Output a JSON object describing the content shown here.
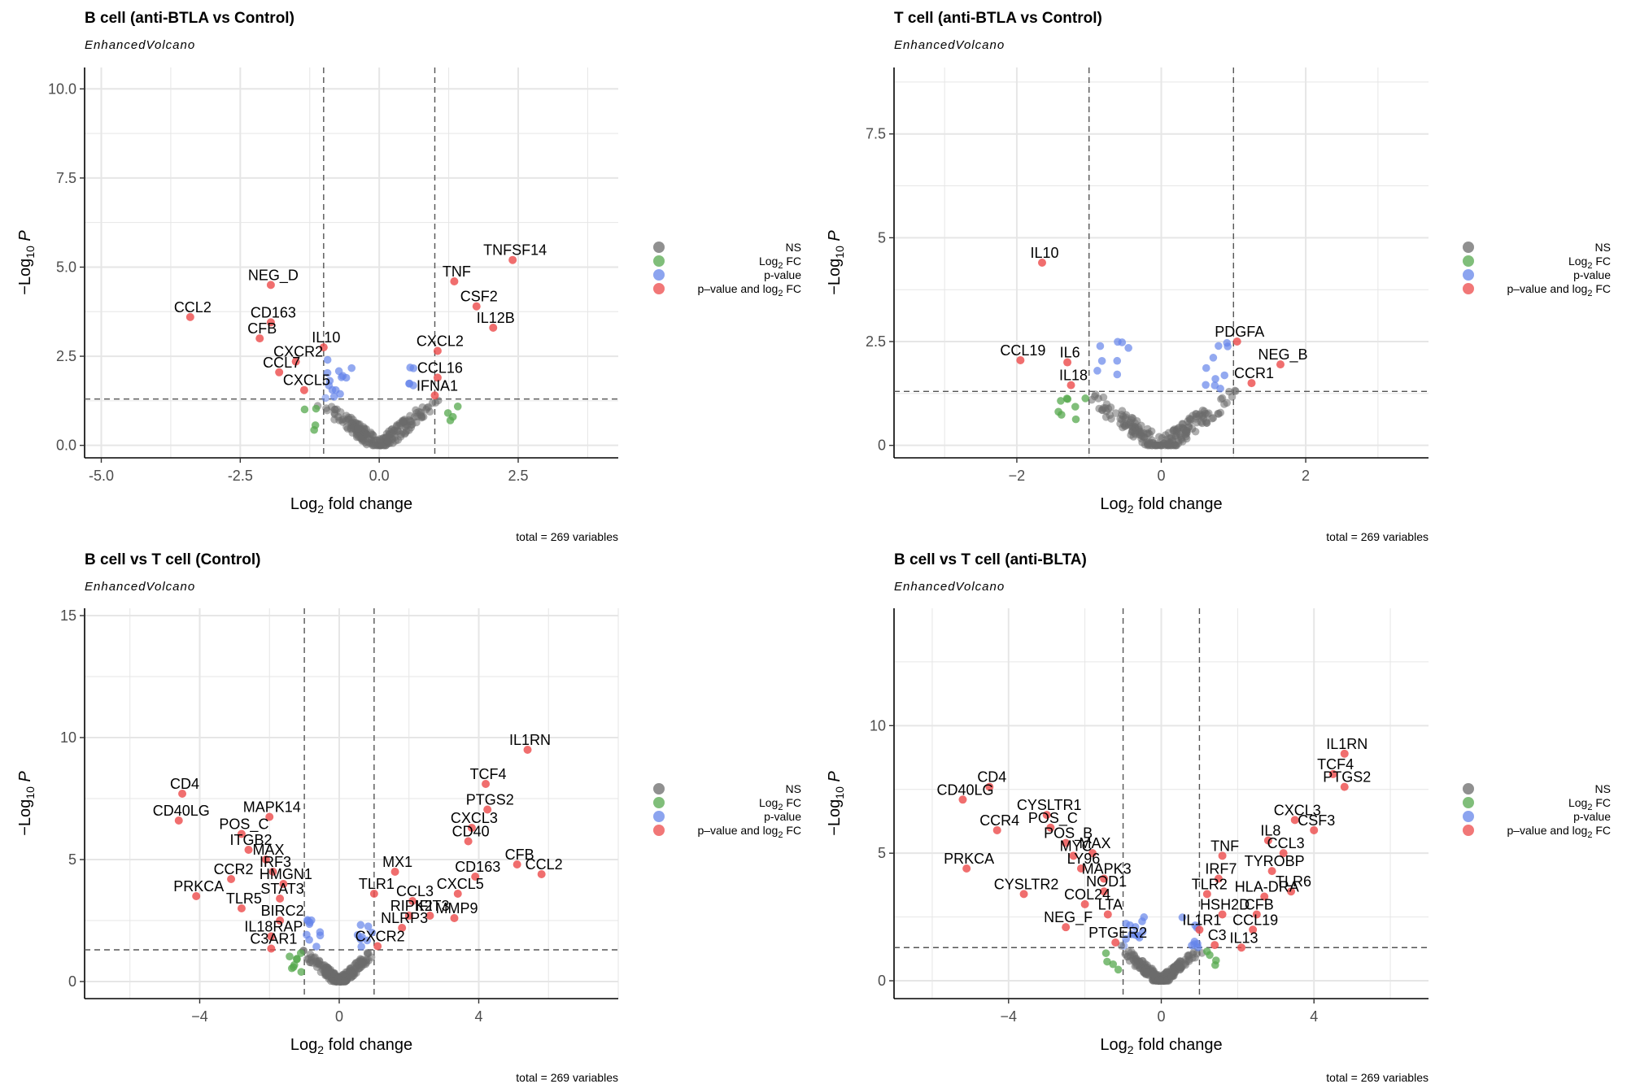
{
  "legend": {
    "items": [
      {
        "key": "ns",
        "label": "NS",
        "color": "#6b6b6b"
      },
      {
        "key": "fc",
        "label": "Log2 FC",
        "color": "#55a84d"
      },
      {
        "key": "pv",
        "label": "p-value",
        "color": "#6585e9"
      },
      {
        "key": "both",
        "label": "p–value and log2 FC",
        "color": "#ec4a4a"
      }
    ]
  },
  "chart_data": [
    {
      "type": "scatter",
      "title": "B cell (anti-BTLA vs Control)",
      "subtitle": "EnhancedVolcano",
      "xlabel": "Log2 fold change",
      "ylabel": "–Log10 P",
      "caption": "total = 269 variables",
      "xlim": [
        -5.3,
        4.3
      ],
      "ylim": [
        -0.35,
        10.6
      ],
      "xticks": [
        -5.0,
        -2.5,
        0.0,
        2.5
      ],
      "yticks": [
        0.0,
        2.5,
        5.0,
        7.5,
        10.0
      ],
      "tick_format": "fixed1",
      "fc_cutoff": 1,
      "p_cutoff_log": 1.3,
      "labeled_points": [
        {
          "label": "TNFSF14",
          "x": 2.4,
          "y": 5.2
        },
        {
          "label": "TNF",
          "x": 1.35,
          "y": 4.6
        },
        {
          "label": "NEG_D",
          "x": -1.95,
          "y": 4.5
        },
        {
          "label": "CSF2",
          "x": 1.75,
          "y": 3.9
        },
        {
          "label": "CCL2",
          "x": -3.4,
          "y": 3.6
        },
        {
          "label": "CD163",
          "x": -1.95,
          "y": 3.45
        },
        {
          "label": "IL12B",
          "x": 2.05,
          "y": 3.3
        },
        {
          "label": "CFB",
          "x": -2.15,
          "y": 3.0
        },
        {
          "label": "IL10",
          "x": -1.0,
          "y": 2.75
        },
        {
          "label": "CXCL2",
          "x": 1.05,
          "y": 2.65
        },
        {
          "label": "CXCR2",
          "x": -1.5,
          "y": 2.35
        },
        {
          "label": "CCL7",
          "x": -1.8,
          "y": 2.05
        },
        {
          "label": "CCL16",
          "x": 1.05,
          "y": 1.9
        },
        {
          "label": "CXCL5",
          "x": -1.35,
          "y": 1.55
        },
        {
          "label": "IFNA1",
          "x": 1.0,
          "y": 1.4
        }
      ]
    },
    {
      "type": "scatter",
      "title": "T cell (anti-BTLA vs Control)",
      "subtitle": "EnhancedVolcano",
      "xlabel": "Log2 fold change",
      "ylabel": "–Log10 P",
      "caption": "total = 269 variables",
      "xlim": [
        -3.7,
        3.7
      ],
      "ylim": [
        -0.3,
        9.1
      ],
      "xticks": [
        -2,
        0,
        2
      ],
      "yticks": [
        0.0,
        2.5,
        5.0,
        7.5
      ],
      "tick_format": "auto",
      "fc_cutoff": 1,
      "p_cutoff_log": 1.3,
      "labeled_points": [
        {
          "label": "IL10",
          "x": -1.65,
          "y": 4.4
        },
        {
          "label": "PDGFA",
          "x": 1.05,
          "y": 2.5
        },
        {
          "label": "CCL19",
          "x": -1.95,
          "y": 2.05
        },
        {
          "label": "IL6",
          "x": -1.3,
          "y": 2.0
        },
        {
          "label": "NEG_B",
          "x": 1.65,
          "y": 1.95
        },
        {
          "label": "IL18",
          "x": -1.25,
          "y": 1.45
        },
        {
          "label": "CCR1",
          "x": 1.25,
          "y": 1.5
        }
      ]
    },
    {
      "type": "scatter",
      "title": "B cell vs T cell (Control)",
      "subtitle": "EnhancedVolcano",
      "xlabel": "Log2 fold change",
      "ylabel": "–Log10 P",
      "caption": "total = 269 variables",
      "xlim": [
        -7.3,
        8.0
      ],
      "ylim": [
        -0.7,
        15.3
      ],
      "xticks": [
        -4,
        0,
        4
      ],
      "yticks": [
        0,
        5,
        10,
        15
      ],
      "tick_format": "auto",
      "fc_cutoff": 1,
      "p_cutoff_log": 1.3,
      "labeled_points": [
        {
          "label": "IL1RN",
          "x": 5.4,
          "y": 9.5
        },
        {
          "label": "TCF4",
          "x": 4.2,
          "y": 8.1
        },
        {
          "label": "CD4",
          "x": -4.5,
          "y": 7.7
        },
        {
          "label": "PTGS2",
          "x": 4.25,
          "y": 7.05
        },
        {
          "label": "CD40LG",
          "x": -4.6,
          "y": 6.6
        },
        {
          "label": "MAPK14",
          "x": -2.0,
          "y": 6.75
        },
        {
          "label": "CXCL3",
          "x": 3.8,
          "y": 6.3
        },
        {
          "label": "POS_C",
          "x": -2.8,
          "y": 6.05
        },
        {
          "label": "ITGB2",
          "x": -2.6,
          "y": 5.4
        },
        {
          "label": "CD40",
          "x": 3.7,
          "y": 5.75
        },
        {
          "label": "MAX",
          "x": -2.1,
          "y": 5.0
        },
        {
          "label": "CFB",
          "x": 5.1,
          "y": 4.8
        },
        {
          "label": "MX1",
          "x": 1.6,
          "y": 4.5
        },
        {
          "label": "CD163",
          "x": 3.9,
          "y": 4.3
        },
        {
          "label": "CCL2",
          "x": 5.8,
          "y": 4.4
        },
        {
          "label": "IRF3",
          "x": -1.9,
          "y": 4.5
        },
        {
          "label": "CCR2",
          "x": -3.1,
          "y": 4.2
        },
        {
          "label": "HMGN1",
          "x": -1.6,
          "y": 4.0
        },
        {
          "label": "TLR1",
          "x": 1.0,
          "y": 3.6
        },
        {
          "label": "STAT3",
          "x": -1.7,
          "y": 3.4
        },
        {
          "label": "PRKCA",
          "x": -4.1,
          "y": 3.5
        },
        {
          "label": "CXCL5",
          "x": 3.4,
          "y": 3.6
        },
        {
          "label": "CCL3",
          "x": 2.1,
          "y": 3.3
        },
        {
          "label": "MMP9",
          "x": 3.3,
          "y": 2.6
        },
        {
          "label": "TLR5",
          "x": -2.8,
          "y": 3.0
        },
        {
          "label": "RIPK2",
          "x": 2.0,
          "y": 2.7
        },
        {
          "label": "IFIT3",
          "x": 2.6,
          "y": 2.7
        },
        {
          "label": "BIRC2",
          "x": -1.7,
          "y": 2.5
        },
        {
          "label": "NLRP3",
          "x": 1.8,
          "y": 2.2
        },
        {
          "label": "IL18RAP",
          "x": -1.95,
          "y": 1.85
        },
        {
          "label": "CXCR2",
          "x": 1.1,
          "y": 1.45
        },
        {
          "label": "C3AR1",
          "x": -1.95,
          "y": 1.35
        }
      ]
    },
    {
      "type": "scatter",
      "title": "B cell vs T cell (anti-BLTA)",
      "subtitle": "EnhancedVolcano",
      "xlabel": "Log2 fold change",
      "ylabel": "–Log10 P",
      "caption": "total = 269 variables",
      "xlim": [
        -7.0,
        7.0
      ],
      "ylim": [
        -0.7,
        14.6
      ],
      "xticks": [
        -4,
        0,
        4
      ],
      "yticks": [
        0,
        5,
        10
      ],
      "tick_format": "auto",
      "fc_cutoff": 1,
      "p_cutoff_log": 1.3,
      "labeled_points": [
        {
          "label": "IL1RN",
          "x": 4.8,
          "y": 8.9
        },
        {
          "label": "TCF4",
          "x": 4.5,
          "y": 8.1
        },
        {
          "label": "PTGS2",
          "x": 4.8,
          "y": 7.6
        },
        {
          "label": "CD4",
          "x": -4.5,
          "y": 7.6
        },
        {
          "label": "CD40LG",
          "x": -5.2,
          "y": 7.1
        },
        {
          "label": "CYSLTR1",
          "x": -3.0,
          "y": 6.5
        },
        {
          "label": "CXCL3",
          "x": 3.5,
          "y": 6.3
        },
        {
          "label": "POS_C",
          "x": -2.9,
          "y": 6.0
        },
        {
          "label": "CSF3",
          "x": 4.0,
          "y": 5.9
        },
        {
          "label": "CCR4",
          "x": -4.3,
          "y": 5.9
        },
        {
          "label": "POS_B",
          "x": -2.5,
          "y": 5.4
        },
        {
          "label": "IL8",
          "x": 2.8,
          "y": 5.5
        },
        {
          "label": "MAX",
          "x": -1.8,
          "y": 5.0
        },
        {
          "label": "MYC",
          "x": -2.3,
          "y": 4.9
        },
        {
          "label": "CCL3",
          "x": 3.2,
          "y": 5.0
        },
        {
          "label": "TNF",
          "x": 1.6,
          "y": 4.9
        },
        {
          "label": "LY96",
          "x": -2.1,
          "y": 4.4
        },
        {
          "label": "TYROBP",
          "x": 2.9,
          "y": 4.3
        },
        {
          "label": "PRKCA",
          "x": -5.1,
          "y": 4.4
        },
        {
          "label": "IRF7",
          "x": 1.5,
          "y": 4.0
        },
        {
          "label": "MAPK3",
          "x": -1.5,
          "y": 4.0
        },
        {
          "label": "TLR6",
          "x": 3.4,
          "y": 3.5
        },
        {
          "label": "NOD1",
          "x": -1.5,
          "y": 3.5
        },
        {
          "label": "CYSLTR2",
          "x": -3.6,
          "y": 3.4
        },
        {
          "label": "TLR2",
          "x": 1.2,
          "y": 3.4
        },
        {
          "label": "HLA-DRA",
          "x": 2.7,
          "y": 3.3
        },
        {
          "label": "COL24",
          "x": -2.0,
          "y": 3.0
        },
        {
          "label": "LTA",
          "x": -1.4,
          "y": 2.6
        },
        {
          "label": "HSH2D",
          "x": 1.6,
          "y": 2.6
        },
        {
          "label": "CFB",
          "x": 2.5,
          "y": 2.6
        },
        {
          "label": "NEG_F",
          "x": -2.5,
          "y": 2.1
        },
        {
          "label": "IL1R1",
          "x": 1.0,
          "y": 2.0
        },
        {
          "label": "CCL19",
          "x": 2.4,
          "y": 2.0
        },
        {
          "label": "PTGER2",
          "x": -1.2,
          "y": 1.5
        },
        {
          "label": "C3",
          "x": 1.4,
          "y": 1.4
        },
        {
          "label": "IL13",
          "x": 2.1,
          "y": 1.3
        }
      ]
    }
  ]
}
